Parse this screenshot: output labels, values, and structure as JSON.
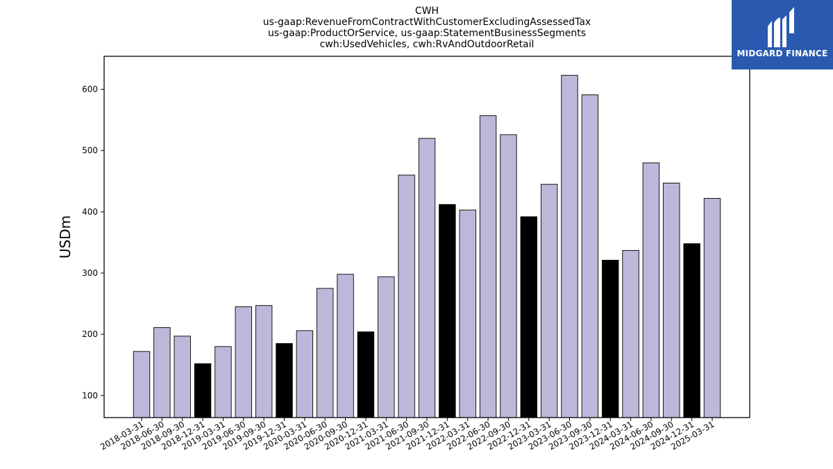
{
  "title_lines": [
    "CWH",
    "us-gaap:RevenueFromContractWithCustomerExcludingAssessedTax",
    "us-gaap:ProductOrService, us-gaap:StatementBusinessSegments",
    "cwh:UsedVehicles, cwh:RvAndOutdoorRetail"
  ],
  "logo": {
    "text": "MIDGARD FINANCE",
    "background": "#2a5ab0"
  },
  "chart_data": {
    "type": "bar",
    "ylabel": "USDm",
    "xlabel": "",
    "ylim": [
      64,
      654
    ],
    "yticks": [
      100,
      200,
      300,
      400,
      500,
      600
    ],
    "grid": false,
    "colors": {
      "quarter": "#bcb8d9",
      "year_end": "#000000"
    },
    "categories": [
      "2018-03-31",
      "2018-06-30",
      "2018-09-30",
      "2018-12-31",
      "2019-03-31",
      "2019-06-30",
      "2019-09-30",
      "2019-12-31",
      "2020-03-31",
      "2020-06-30",
      "2020-09-30",
      "2020-12-31",
      "2021-03-31",
      "2021-06-30",
      "2021-09-30",
      "2021-12-31",
      "2022-03-31",
      "2022-06-30",
      "2022-09-30",
      "2022-12-31",
      "2023-03-31",
      "2023-06-30",
      "2023-09-30",
      "2023-12-31",
      "2024-03-31",
      "2024-06-30",
      "2024-09-30",
      "2024-12-31",
      "2025-03-31"
    ],
    "values": [
      172,
      211,
      197,
      152,
      180,
      245,
      247,
      185,
      206,
      275,
      298,
      204,
      294,
      460,
      520,
      412,
      403,
      557,
      526,
      392,
      445,
      623,
      591,
      321,
      337,
      480,
      447,
      348,
      422
    ]
  }
}
